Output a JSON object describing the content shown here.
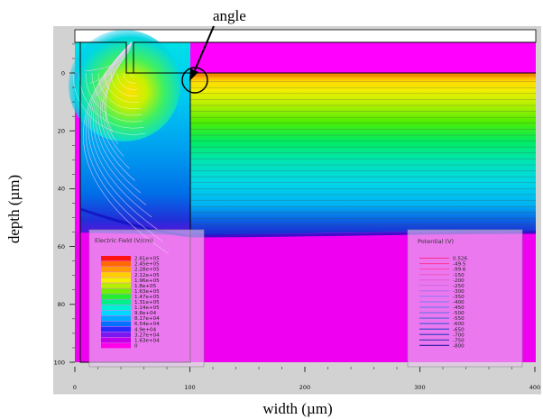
{
  "chart_data": {
    "type": "heatmap",
    "title": "",
    "xlabel": "width (µm)",
    "ylabel": "depth (µm)",
    "xlim": [
      0,
      400
    ],
    "ylim": [
      -11,
      104
    ],
    "x_ticks": [
      "0",
      "100",
      "200",
      "300",
      "400"
    ],
    "y_ticks": [
      "0",
      "20",
      "40",
      "60",
      "80",
      "100"
    ],
    "x_tick_values": [
      0,
      100,
      200,
      300,
      400
    ],
    "y_tick_values": [
      0,
      20,
      40,
      60,
      80,
      100
    ],
    "annotation": {
      "text": "angle",
      "target_x": 103,
      "target_y": 2
    },
    "legend_field": {
      "title": "Electric Field (V/cm)",
      "entries": [
        "2.61e+05",
        "2.45e+05",
        "2.28e+05",
        "2.12e+05",
        "1.96e+05",
        "1.8e+05",
        "1.63e+05",
        "1.47e+05",
        "1.31e+05",
        "1.14e+05",
        "9.8e+04",
        "8.17e+04",
        "6.54e+04",
        "4.9e+04",
        "3.27e+04",
        "1.63e+04",
        "0"
      ],
      "colors": [
        "#ff1414",
        "#ff6a00",
        "#ff9a00",
        "#ffd000",
        "#f0f000",
        "#b6f000",
        "#6ef000",
        "#20f030",
        "#00f08a",
        "#00f0d2",
        "#00d8ff",
        "#00a8ff",
        "#0070ff",
        "#2a2aff",
        "#7a18f0",
        "#c000e8",
        "#ff00e8"
      ]
    },
    "legend_potential": {
      "title": "Potential (V)",
      "entries": [
        "0.526",
        "-49.5",
        "-99.6",
        "-150",
        "-200",
        "-250",
        "-300",
        "-350",
        "-400",
        "-450",
        "-500",
        "-550",
        "-600",
        "-650",
        "-700",
        "-750",
        "-800"
      ],
      "colors": [
        "#ff2a8a",
        "#ff38a0",
        "#ff46b6",
        "#f058c8",
        "#e060d8",
        "#c868e4",
        "#b070ec",
        "#9878f0",
        "#8080f0",
        "#6a78ec",
        "#5870e6",
        "#4868de",
        "#3a58d4",
        "#3048c8",
        "#2a38bc",
        "#2628ae",
        "#2418a0"
      ]
    },
    "region_colors": {
      "background": "#d2d2d2",
      "top_region": "#ff00ff",
      "bottom_region": "#f000f0",
      "oxide": "#ffffff"
    }
  }
}
